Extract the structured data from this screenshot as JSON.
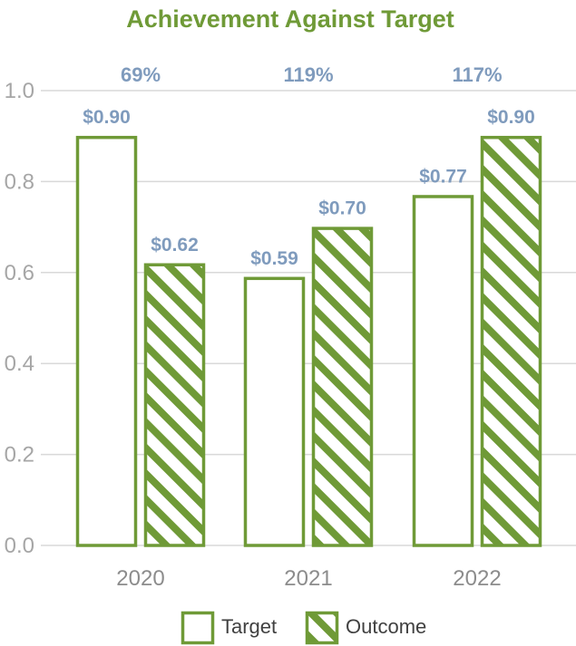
{
  "colors": {
    "bar_stroke": "#6f9a37",
    "title": "#6f9a37",
    "grid": "#d9d9d9",
    "label": "#7f9bbd",
    "tick": "#a6a6a6"
  },
  "chart_data": {
    "type": "bar",
    "title": "Achievement Against Target",
    "categories": [
      "2020",
      "2021",
      "2022"
    ],
    "series": [
      {
        "name": "Target",
        "values": [
          0.9,
          0.59,
          0.77
        ],
        "labels": [
          "$0.90",
          "$0.59",
          "$0.77"
        ],
        "pattern": "solid-outline"
      },
      {
        "name": "Outcome",
        "values": [
          0.62,
          0.7,
          0.9
        ],
        "labels": [
          "$0.62",
          "$0.70",
          "$0.90"
        ],
        "pattern": "diagonal-hatch"
      }
    ],
    "achievement_labels": [
      "69%",
      "119%",
      "117%"
    ],
    "yticks": [
      "0.0",
      "0.2",
      "0.4",
      "0.6",
      "0.8",
      "1.0"
    ],
    "ylim": [
      0,
      1.0
    ],
    "grid": true,
    "legend": "bottom"
  }
}
